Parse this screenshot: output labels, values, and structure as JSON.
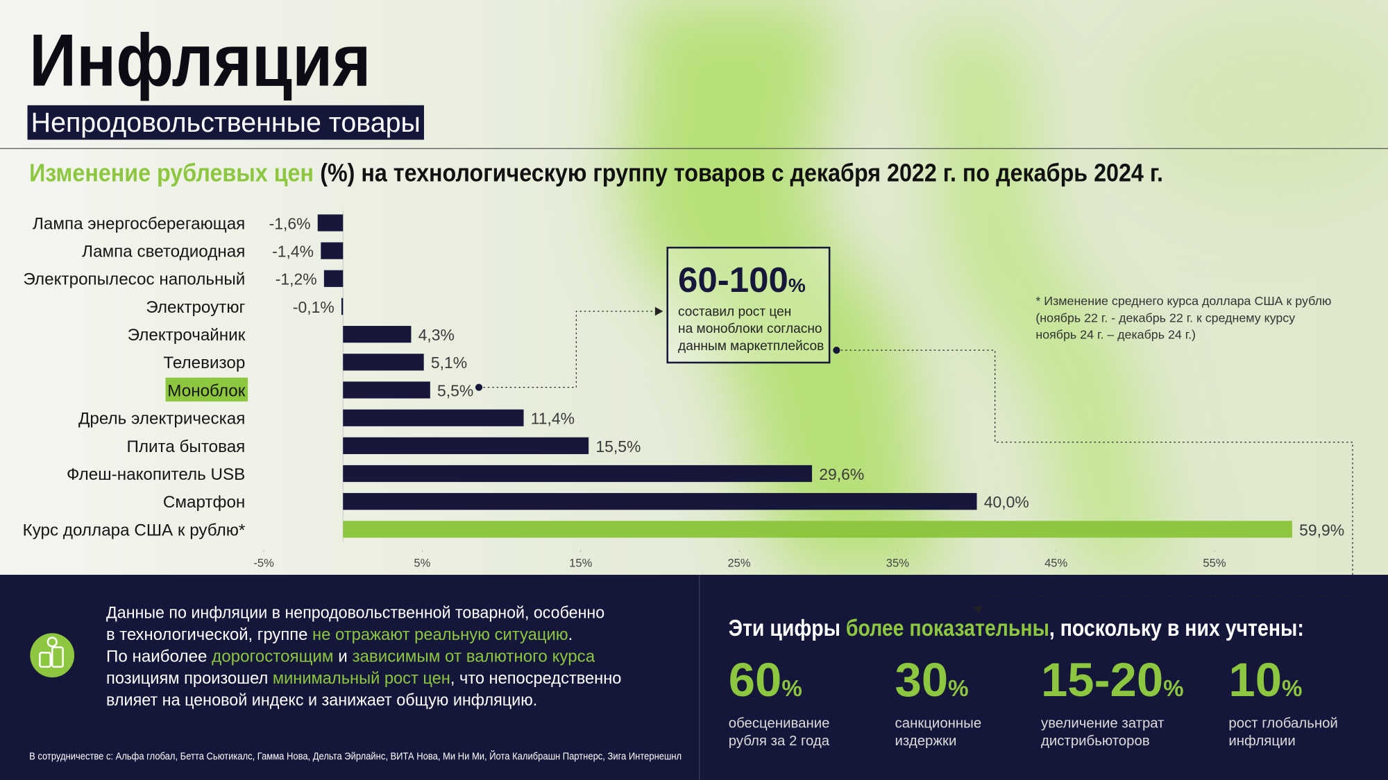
{
  "header": {
    "title": "Инфляция",
    "subtitle": "Непродовольственные товары"
  },
  "chart_data": {
    "type": "bar",
    "orientation": "horizontal",
    "title_accent": "Изменение рублевых цен",
    "title": "(%) на технологическую группу товаров с декабря 2022 г. по декабрь 2024 г.",
    "categories": [
      "Лампа энергосберегающая",
      "Лампа светодиодная",
      "Электропылесос напольный",
      "Электроутюг",
      "Электрочайник",
      "Телевизор",
      "Моноблок",
      "Дрель электрическая",
      "Плита бытовая",
      "Флеш-накопитель USB",
      "Смартфон",
      "Курс доллара США к рублю*"
    ],
    "values": [
      -1.6,
      -1.4,
      -1.2,
      -0.1,
      4.3,
      5.1,
      5.5,
      11.4,
      15.5,
      29.6,
      40.0,
      59.9
    ],
    "value_labels": [
      "-1,6%",
      "-1,4%",
      "-1,2%",
      "-0,1%",
      "4,3%",
      "5,1%",
      "5,5%",
      "11,4%",
      "15,5%",
      "29,6%",
      "40,0%",
      "59,9%"
    ],
    "color": "#16173a",
    "accent_color": "#8dc63f",
    "accent_bar": 11,
    "accent_label": 6,
    "xlim": [
      -5,
      62
    ],
    "xticks": [
      {
        "value": -5,
        "label": "-5%"
      },
      {
        "value": 5,
        "label": "5%"
      },
      {
        "value": 15,
        "label": "15%"
      },
      {
        "value": 25,
        "label": "25%"
      },
      {
        "value": 35,
        "label": "35%"
      },
      {
        "value": 45,
        "label": "45%"
      },
      {
        "value": 55,
        "label": "55%"
      }
    ],
    "callout": {
      "value": "60-100",
      "unit": "%",
      "lines": [
        "составил рост цен",
        "на моноблоки согласно",
        "данным маркетплейсов"
      ]
    },
    "note": [
      "* Изменение среднего курса доллара США к рублю",
      "(ноябрь 22 г. - декабрь 22 г. к среднему курсу",
      "ноябрь 24 г. – декабрь 24 г.)"
    ]
  },
  "summary": [
    [
      {
        "text": "Данные по инфляции в непродовольственной товарной, особенно",
        "accent": false
      }
    ],
    [
      {
        "text": "в технологической, группе ",
        "accent": false
      },
      {
        "text": "не отражают реальную ситуацию",
        "accent": true
      },
      {
        "text": ".",
        "accent": false
      }
    ],
    [
      {
        "text": "По наиболее ",
        "accent": false
      },
      {
        "text": "дорогостоящим",
        "accent": true
      },
      {
        "text": " и ",
        "accent": false
      },
      {
        "text": "зависимым от валютного курса",
        "accent": true
      }
    ],
    [
      {
        "text": "позициям произошел ",
        "accent": false
      },
      {
        "text": "минимальный рост цен",
        "accent": true
      },
      {
        "text": ", что непосредственно",
        "accent": false
      }
    ],
    [
      {
        "text": "влияет на ценовой индекс и занижает общую инфляцию.",
        "accent": false
      }
    ]
  ],
  "factors": {
    "title": [
      {
        "text": "Эти цифры ",
        "accent": false
      },
      {
        "text": "более показательны",
        "accent": true
      },
      {
        "text": ", поскольку в них учтены:",
        "accent": false
      }
    ],
    "items": [
      {
        "value": "60",
        "unit": "%",
        "caption": [
          "обесценивание",
          "рубля за 2 года"
        ]
      },
      {
        "value": "30",
        "unit": "%",
        "caption": [
          "санкционные",
          "издержки"
        ]
      },
      {
        "value": "15-20",
        "unit": "%",
        "caption": [
          "увеличение затрат",
          "дистрибьюторов"
        ]
      },
      {
        "value": "10",
        "unit": "%",
        "caption": [
          "рост глобальной",
          "инфляции"
        ]
      }
    ]
  },
  "footer": "В сотрудничестве с: Альфа глобал, Бетта Сьютикалс, Гамма Нова, Дельта Эйрлайнс, ВИТА Нова, Ми Ни Ми, Йота Калибрашн Партнерс, Зига Интернешнл"
}
